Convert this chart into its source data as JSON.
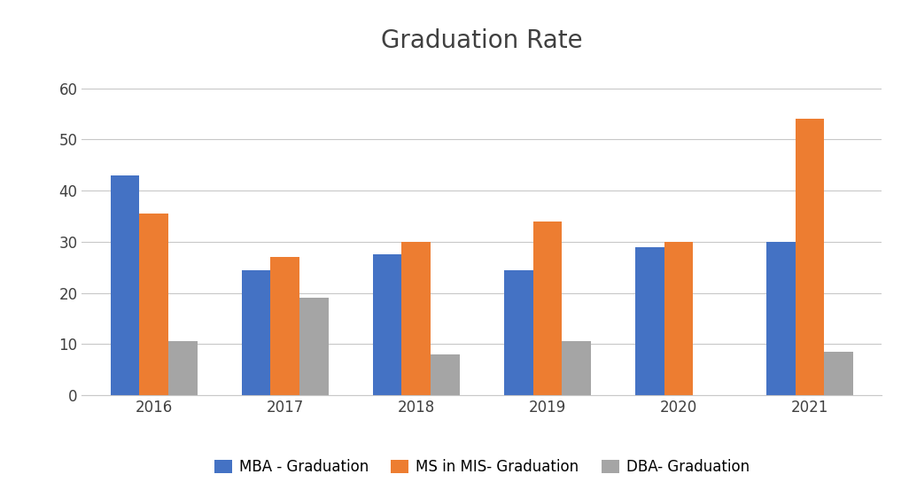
{
  "title": "Graduation Rate",
  "categories": [
    "2016",
    "2017",
    "2018",
    "2019",
    "2020",
    "2021"
  ],
  "series": [
    {
      "label": "MBA - Graduation",
      "color": "#4472C4",
      "values": [
        43,
        24.5,
        27.5,
        24.5,
        29,
        30
      ]
    },
    {
      "label": "MS in MIS- Graduation",
      "color": "#ED7D31",
      "values": [
        35.5,
        27,
        30,
        34,
        30,
        54
      ]
    },
    {
      "label": "DBA- Graduation",
      "color": "#A5A5A5",
      "values": [
        10.5,
        19,
        8,
        10.5,
        0,
        8.5
      ]
    }
  ],
  "ylim": [
    0,
    65
  ],
  "yticks": [
    0,
    10,
    20,
    30,
    40,
    50,
    60
  ],
  "title_fontsize": 20,
  "tick_fontsize": 12,
  "legend_fontsize": 12,
  "background_color": "#ffffff",
  "grid_color": "#c8c8c8",
  "bar_width": 0.22
}
